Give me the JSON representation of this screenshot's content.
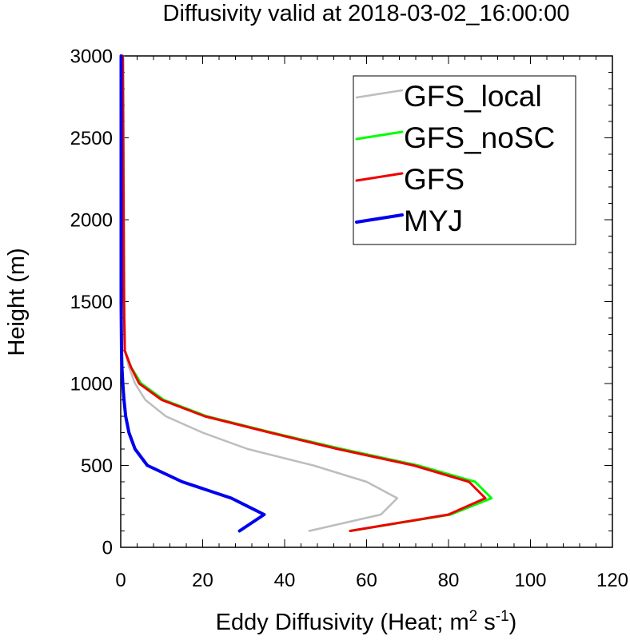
{
  "chart_data": {
    "type": "line",
    "title": "Diffusivity valid at 2018-03-02_16:00:00",
    "xlabel": "Eddy Diffusivity (Heat; m",
    "xlabel_sup1": "2",
    "xlabel_mid": " s",
    "xlabel_sup2": "-1",
    "xlabel_end": ")",
    "ylabel": "Height (m)",
    "xlim": [
      0,
      120
    ],
    "ylim": [
      0,
      3000
    ],
    "x_ticks": [
      "0",
      "20",
      "40",
      "60",
      "80",
      "100",
      "120"
    ],
    "y_ticks": [
      "0",
      "500",
      "1000",
      "1500",
      "2000",
      "2500",
      "3000"
    ],
    "grid": false,
    "legend_position": "top-right",
    "series": [
      {
        "name": "GFS_local",
        "color": "#bdbdbd",
        "width": 2.5,
        "x": [
          46,
          63.5,
          67.5,
          60,
          47,
          31,
          20,
          11,
          6,
          3.5,
          2,
          1,
          0.9,
          0.8,
          0.7,
          0.6
        ],
        "y": [
          100,
          200,
          300,
          400,
          500,
          600,
          700,
          800,
          900,
          1000,
          1100,
          1200,
          1500,
          2000,
          2500,
          3000
        ]
      },
      {
        "name": "GFS_noSC",
        "color": "#00ff00",
        "width": 3,
        "x": [
          56,
          80.5,
          90.5,
          86.5,
          72.5,
          54,
          37,
          21,
          10.5,
          5,
          2.5,
          1,
          0.8,
          0.7,
          0.6,
          0.5
        ],
        "y": [
          100,
          200,
          300,
          400,
          500,
          600,
          700,
          800,
          900,
          1000,
          1100,
          1200,
          1500,
          2000,
          2500,
          3000
        ]
      },
      {
        "name": "GFS",
        "color": "#ee0000",
        "width": 3,
        "x": [
          56,
          80,
          89,
          85,
          71.5,
          53,
          36.5,
          20.5,
          10,
          4.5,
          2.5,
          1,
          0.8,
          0.7,
          0.6,
          0.5
        ],
        "y": [
          100,
          200,
          300,
          400,
          500,
          600,
          700,
          800,
          900,
          1000,
          1100,
          1200,
          1500,
          2000,
          2500,
          3000
        ]
      },
      {
        "name": "MYJ",
        "color": "#0000ee",
        "width": 4,
        "x": [
          29,
          35,
          27,
          15,
          6.5,
          3.5,
          2,
          1.2,
          0.8,
          0.5,
          0.3,
          0.2,
          0.1,
          0.1,
          0.1,
          0.1
        ],
        "y": [
          100,
          200,
          300,
          400,
          500,
          600,
          700,
          800,
          900,
          1000,
          1100,
          1200,
          1500,
          2000,
          2500,
          3000
        ]
      }
    ]
  }
}
